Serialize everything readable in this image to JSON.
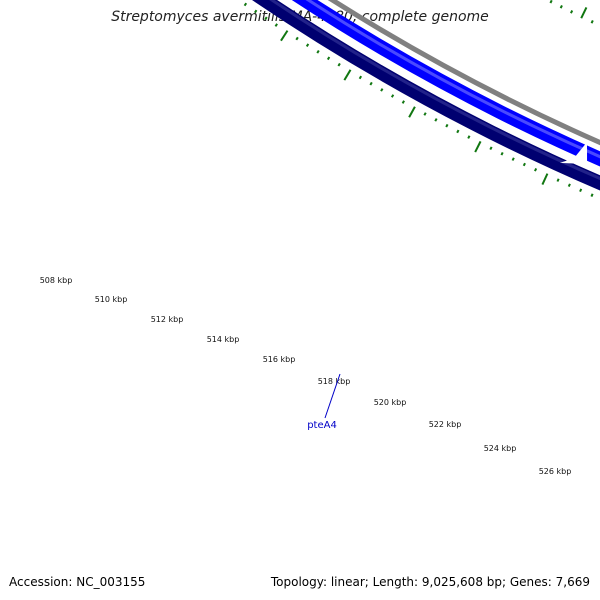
{
  "title": "Streptomyces avermitilis MA-4680, complete genome",
  "footer": {
    "accession": "Accession: NC_003155",
    "summary": "Topology: linear; Length: 9,025,608 bp; Genes: 7,669"
  },
  "axis": {
    "unit": "kbp",
    "tick_labels": [
      "508 kbp",
      "510 kbp",
      "512 kbp",
      "514 kbp",
      "516 kbp",
      "518 kbp",
      "520 kbp",
      "522 kbp",
      "524 kbp",
      "526 kbp"
    ]
  },
  "genes": [
    {
      "name": "pteA4",
      "strand": "reverse"
    }
  ],
  "colors": {
    "backbone": "#808080",
    "forward_feature": "#0000ff",
    "reverse_feature": "#000070",
    "gc_ticks": "#117711",
    "gene_label": "#0000c8"
  }
}
